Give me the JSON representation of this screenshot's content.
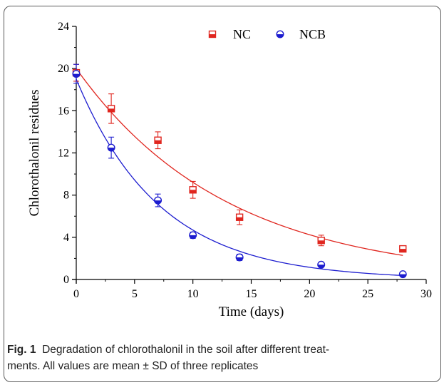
{
  "chart_data": {
    "type": "scatter",
    "title": "",
    "xlabel": "Time (days)",
    "ylabel": "Chlorothalonil residues",
    "xlim": [
      0,
      30
    ],
    "ylim": [
      0,
      24
    ],
    "xticks": [
      0,
      5,
      10,
      15,
      20,
      25,
      30
    ],
    "yticks": [
      0,
      4,
      8,
      12,
      16,
      20,
      24
    ],
    "grid": false,
    "legend_position": "top",
    "series": [
      {
        "name": "NC",
        "marker": "half-filled-square",
        "color": "#e0261f",
        "x": [
          0,
          3,
          7,
          10,
          14,
          21,
          28
        ],
        "y": [
          19.6,
          16.2,
          13.2,
          8.5,
          5.9,
          3.7,
          2.9
        ],
        "err": [
          0.8,
          1.4,
          0.8,
          0.8,
          0.7,
          0.5,
          0.2
        ],
        "fit": {
          "model": "exponential",
          "c0": 20.0,
          "k": 0.0775
        }
      },
      {
        "name": "NCB",
        "marker": "half-filled-circle",
        "color": "#1c1ccf",
        "x": [
          0,
          3,
          7,
          10,
          14,
          21,
          28
        ],
        "y": [
          19.5,
          12.5,
          7.5,
          4.2,
          2.1,
          1.4,
          0.5
        ],
        "err": [
          0.9,
          1.0,
          0.6,
          0.3,
          0.3,
          0.2,
          0.1
        ],
        "fit": {
          "model": "exponential",
          "c0": 19.0,
          "k": 0.14
        }
      }
    ]
  },
  "caption": {
    "prefix": "Fig. 1",
    "line1": "Degradation of chlorothalonil in the soil after different treat-",
    "line2": "ments. All values are mean ± SD of three replicates"
  }
}
